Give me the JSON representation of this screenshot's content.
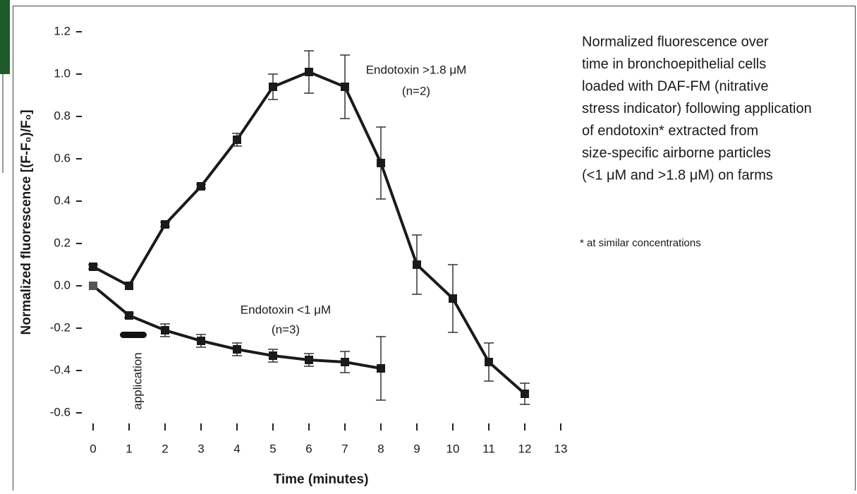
{
  "chart_data": {
    "type": "line",
    "y_label": "Normalized fluorescence [(F-F₀)/F₀]",
    "x_label": "Time (minutes)",
    "xlim": [
      0,
      13
    ],
    "xticks": [
      0,
      1,
      2,
      3,
      4,
      5,
      6,
      7,
      8,
      9,
      10,
      11,
      12,
      13
    ],
    "ylim": [
      -0.6,
      1.2
    ],
    "yticks": [
      {
        "value": 1.2,
        "label": "1.2"
      },
      {
        "value": 1.0,
        "label": "1.0"
      },
      {
        "value": 0.8,
        "label": "0.8"
      },
      {
        "value": 0.6,
        "label": "0.6"
      },
      {
        "value": 0.4,
        "label": "0.4"
      },
      {
        "value": 0.2,
        "label": "0.2"
      },
      {
        "value": 0,
        "label": "0.0"
      },
      {
        "value": -0.2,
        "label": "-0.2"
      },
      {
        "value": -0.4,
        "label": "-0.4"
      },
      {
        "value": -0.6,
        "label": "-0.6"
      }
    ],
    "series": [
      {
        "name": "Endotoxin >1.8 μM",
        "note": "(n=2)",
        "color": "#1a1a1a",
        "x": [
          0,
          1,
          2,
          3,
          4,
          5,
          6,
          7,
          8,
          9,
          10,
          11,
          12
        ],
        "values": [
          0.09,
          0.0,
          0.29,
          0.47,
          0.69,
          0.94,
          1.01,
          0.94,
          0.58,
          0.1,
          -0.06,
          -0.36,
          -0.51
        ],
        "errors": [
          0.01,
          0.0,
          0.01,
          0.01,
          0.03,
          0.06,
          0.1,
          0.15,
          0.17,
          0.14,
          0.16,
          0.09,
          0.05
        ]
      },
      {
        "name": "Endotoxin <1 μM",
        "note": "(n=3)",
        "color": "#1a1a1a",
        "x": [
          0,
          1,
          2,
          3,
          4,
          5,
          6,
          7,
          8
        ],
        "values": [
          0.0,
          -0.14,
          -0.21,
          -0.26,
          -0.3,
          -0.33,
          -0.35,
          -0.36,
          -0.39
        ],
        "errors": [
          0.0,
          0.01,
          0.03,
          0.03,
          0.03,
          0.03,
          0.03,
          0.05,
          0.15
        ]
      }
    ],
    "annotation": "application",
    "description": [
      "Normalized fluorescence over",
      "time in bronchoepithelial cells",
      "loaded with DAF-FM (nitrative",
      "stress indicator) following application",
      "of endotoxin* extracted from",
      "size-specific airborne particles",
      "(<1 μM and >1.8 μM) on farms"
    ],
    "footnote": "* at similar concentrations"
  }
}
